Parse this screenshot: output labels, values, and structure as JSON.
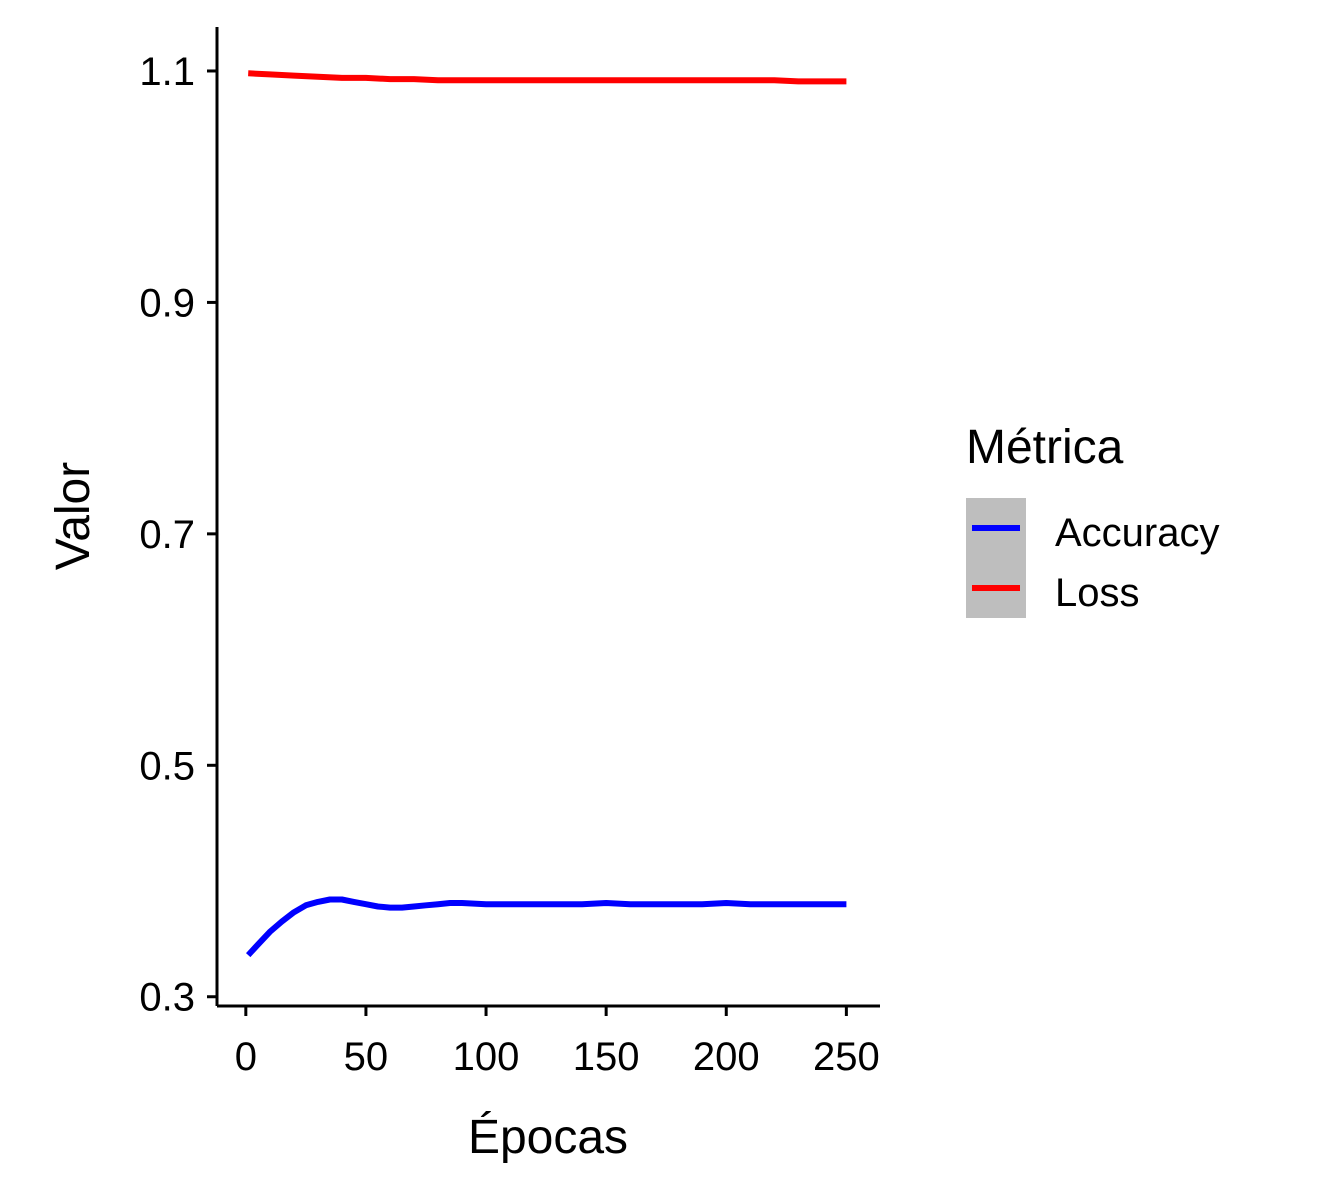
{
  "chart_data": {
    "type": "line",
    "xlabel": "Épocas",
    "ylabel": "Valor",
    "xlim": [
      -12,
      264
    ],
    "ylim": [
      0.292,
      1.138
    ],
    "x_ticks": [
      0,
      50,
      100,
      150,
      200,
      250
    ],
    "y_ticks": [
      0.3,
      0.5,
      0.7,
      0.9,
      1.1
    ],
    "y_tick_labels": [
      "0.3",
      "0.5",
      "0.7",
      "0.9",
      "1.1"
    ],
    "grid": false,
    "legend": {
      "title": "Métrica",
      "position": "right"
    },
    "series": [
      {
        "name": "Accuracy",
        "color": "#0000ff",
        "x": [
          1,
          5,
          10,
          15,
          20,
          25,
          30,
          35,
          40,
          45,
          50,
          55,
          60,
          65,
          70,
          75,
          80,
          85,
          90,
          100,
          110,
          120,
          130,
          140,
          150,
          160,
          170,
          180,
          190,
          200,
          210,
          220,
          230,
          240,
          250
        ],
        "y": [
          0.336,
          0.345,
          0.356,
          0.365,
          0.373,
          0.379,
          0.382,
          0.384,
          0.384,
          0.382,
          0.38,
          0.378,
          0.377,
          0.377,
          0.378,
          0.379,
          0.38,
          0.381,
          0.381,
          0.38,
          0.38,
          0.38,
          0.38,
          0.38,
          0.381,
          0.38,
          0.38,
          0.38,
          0.38,
          0.381,
          0.38,
          0.38,
          0.38,
          0.38,
          0.38
        ]
      },
      {
        "name": "Loss",
        "color": "#ff0000",
        "x": [
          1,
          10,
          20,
          30,
          40,
          50,
          60,
          70,
          80,
          100,
          120,
          150,
          180,
          200,
          220,
          230,
          240,
          250
        ],
        "y": [
          1.098,
          1.097,
          1.096,
          1.095,
          1.094,
          1.094,
          1.093,
          1.093,
          1.092,
          1.092,
          1.092,
          1.092,
          1.092,
          1.092,
          1.092,
          1.091,
          1.091,
          1.091
        ]
      }
    ]
  }
}
